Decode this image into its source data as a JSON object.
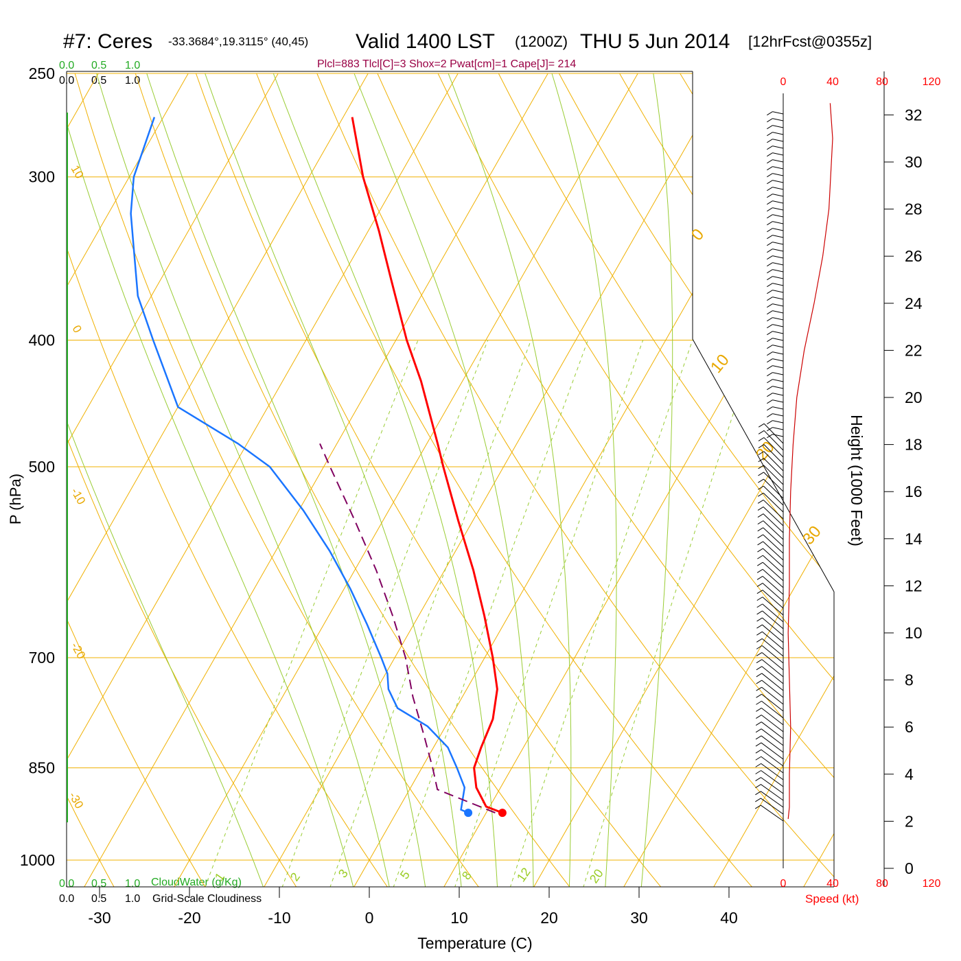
{
  "header": {
    "station": "#7: Ceres",
    "location": "-33.3684°,19.3115° (40,45)",
    "valid_prefix": "Valid 1400 LST",
    "valid_z": "(1200Z)",
    "valid_date": "THU 5 Jun 2014",
    "forecast": "[12hrFcst@0355z]",
    "indices": "Plcl=883 Tlcl[C]=3 Shox=2 Pwat[cm]=1 Cape[J]= 214"
  },
  "legend": {
    "cw_scale": [
      "0.0",
      "0.5",
      "1.0"
    ],
    "gs_scale": [
      "0.0",
      "0.5",
      "1.0"
    ],
    "cloudwater_label": "CloudWater (g/Kg)",
    "cloudiness_label": "Grid-Scale Cloudiness"
  },
  "colors": {
    "temperature": "#ff0000",
    "dewpoint": "#1a75ff",
    "parcel": "#800060",
    "isobar": "#f0b000",
    "dry_adiabat": "#f0b000",
    "moist_adiabat": "#99cc33",
    "mixing_ratio": "#99cc33",
    "wind_speed": "#cc0000",
    "cloud_axis": "#22aa22"
  },
  "chart_data": {
    "type": "line",
    "xlabel": "Temperature (C)",
    "ylabel": "P (hPa)",
    "xticks": [
      -30,
      -20,
      -10,
      0,
      10,
      20,
      30,
      40
    ],
    "yticks": [
      250,
      300,
      400,
      500,
      700,
      850,
      1000
    ],
    "p_range": [
      1050,
      250
    ],
    "t_range_at_1000": [
      -33.5,
      52
    ],
    "isotherm_labels": [
      "10",
      "0",
      "-10",
      "-20",
      "-30",
      "0",
      "10",
      "20",
      "30"
    ],
    "mixing_ratio_labels": [
      "1",
      "2",
      "3",
      "5",
      "8",
      "12",
      "20"
    ],
    "series": [
      {
        "name": "temperature",
        "points": [
          [
            920,
            11.8
          ],
          [
            910,
            9.6
          ],
          [
            880,
            7.3
          ],
          [
            850,
            5.8
          ],
          [
            820,
            5.3
          ],
          [
            780,
            4.8
          ],
          [
            740,
            3.4
          ],
          [
            700,
            0.9
          ],
          [
            650,
            -2.7
          ],
          [
            600,
            -6.8
          ],
          [
            550,
            -11.6
          ],
          [
            500,
            -16.7
          ],
          [
            480,
            -18.8
          ],
          [
            430,
            -24.6
          ],
          [
            400,
            -28.8
          ],
          [
            360,
            -34.3
          ],
          [
            330,
            -38.8
          ],
          [
            300,
            -44.0
          ],
          [
            270,
            -49.0
          ]
        ]
      },
      {
        "name": "dewpoint",
        "points": [
          [
            920,
            8.0
          ],
          [
            915,
            7.0
          ],
          [
            880,
            6.0
          ],
          [
            850,
            3.9
          ],
          [
            820,
            1.6
          ],
          [
            790,
            -2.0
          ],
          [
            765,
            -6.5
          ],
          [
            740,
            -8.7
          ],
          [
            720,
            -9.8
          ],
          [
            700,
            -11.5
          ],
          [
            660,
            -15.2
          ],
          [
            620,
            -19.3
          ],
          [
            580,
            -24.0
          ],
          [
            540,
            -29.5
          ],
          [
            500,
            -36.0
          ],
          [
            480,
            -41.0
          ],
          [
            450,
            -50.0
          ],
          [
            400,
            -57.0
          ],
          [
            370,
            -61.5
          ],
          [
            340,
            -65.0
          ],
          [
            320,
            -67.5
          ],
          [
            300,
            -69.5
          ],
          [
            270,
            -71.0
          ]
        ]
      },
      {
        "name": "parcel",
        "points": [
          [
            920,
            11.0
          ],
          [
            883,
            3.1
          ],
          [
            850,
            1.2
          ],
          [
            800,
            -2.0
          ],
          [
            750,
            -5.5
          ],
          [
            700,
            -8.8
          ],
          [
            650,
            -12.9
          ],
          [
            600,
            -17.6
          ],
          [
            550,
            -23.1
          ],
          [
            500,
            -29.3
          ],
          [
            480,
            -31.9
          ]
        ]
      }
    ],
    "surface_temperature": 11.8,
    "surface_dewpoint": 8.0,
    "height_axis": {
      "label": "Height (1000 Feet)",
      "ticks": [
        0,
        2,
        4,
        6,
        8,
        10,
        12,
        14,
        16,
        18,
        20,
        22,
        24,
        26,
        28,
        30,
        32
      ]
    },
    "speed_axis": {
      "label": "Speed (kt)",
      "ticks": [
        0,
        40,
        80,
        120
      ]
    },
    "wind_speed_profile": [
      [
        2.1,
        4
      ],
      [
        2.6,
        5
      ],
      [
        4,
        5
      ],
      [
        6,
        6
      ],
      [
        8,
        5
      ],
      [
        10,
        4
      ],
      [
        12,
        5
      ],
      [
        14,
        5
      ],
      [
        16,
        6
      ],
      [
        18,
        8
      ],
      [
        20,
        11
      ],
      [
        22,
        17
      ],
      [
        24,
        25
      ],
      [
        26,
        32
      ],
      [
        28,
        37
      ],
      [
        30,
        39
      ],
      [
        31,
        40
      ],
      [
        32.5,
        38
      ]
    ]
  }
}
